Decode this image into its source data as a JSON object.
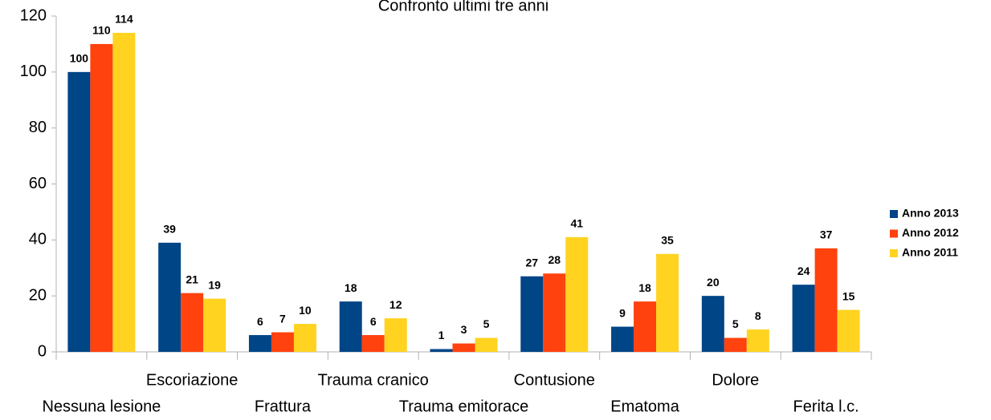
{
  "chart_data": {
    "type": "bar",
    "title": "Confronto ultimi tre anni",
    "categories": [
      "Nessuna lesione",
      "Escoriazione",
      "Frattura",
      "Trauma cranico",
      "Trauma emitorace",
      "Contusione",
      "Ematoma",
      "Dolore",
      "Ferita l.c."
    ],
    "series": [
      {
        "name": "Anno 2013",
        "color": "#004586",
        "values": [
          100,
          39,
          6,
          18,
          1,
          27,
          9,
          20,
          24
        ]
      },
      {
        "name": "Anno 2012",
        "color": "#ff420e",
        "values": [
          110,
          21,
          7,
          6,
          3,
          28,
          18,
          5,
          37
        ]
      },
      {
        "name": "Anno 2011",
        "color": "#ffd320",
        "values": [
          114,
          19,
          10,
          12,
          5,
          41,
          35,
          8,
          15
        ]
      }
    ],
    "ylim": [
      0,
      120
    ],
    "yticks": [
      0,
      20,
      40,
      60,
      80,
      100,
      120
    ],
    "grid": false,
    "legend": "right"
  }
}
